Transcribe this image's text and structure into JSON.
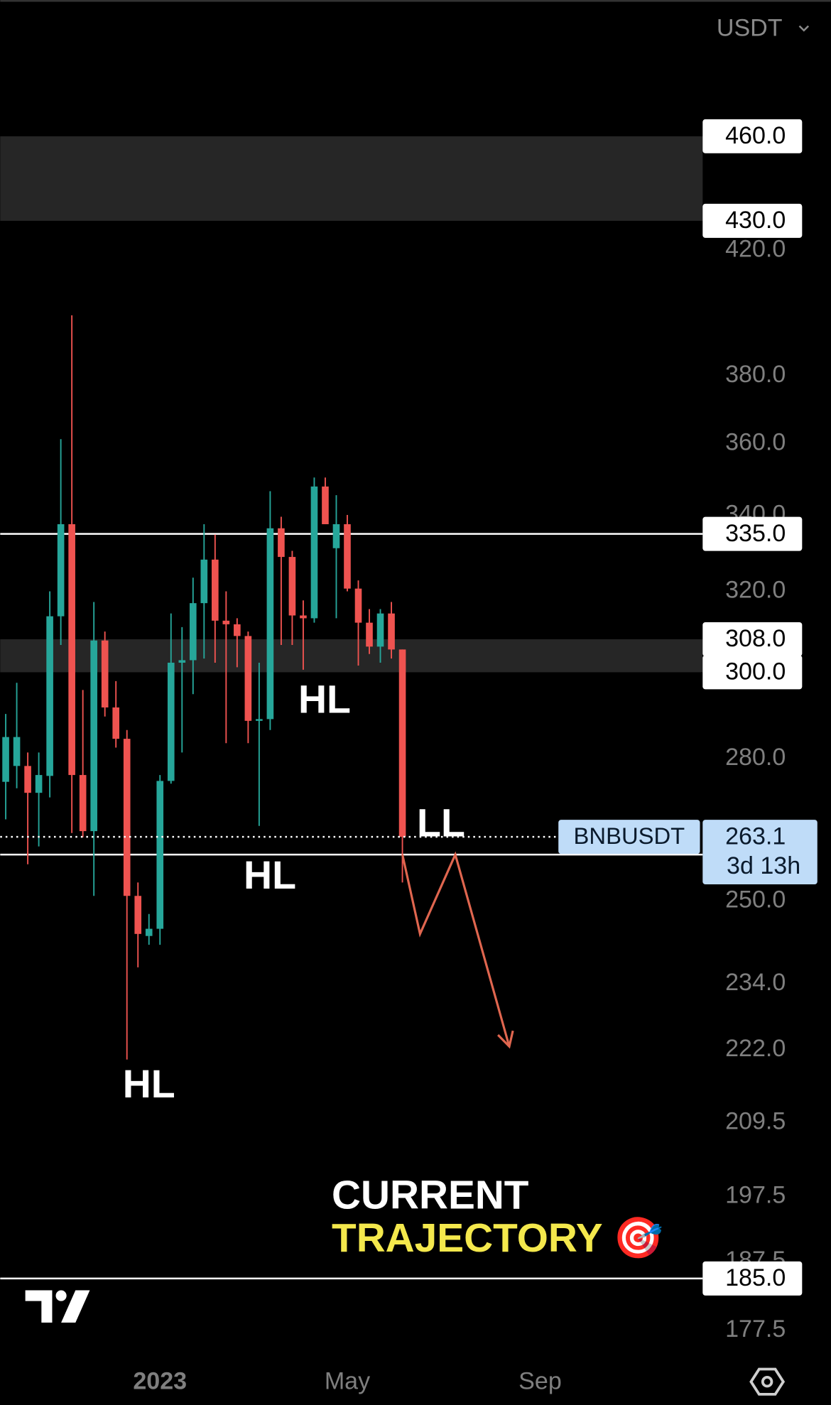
{
  "chart_data": {
    "type": "candlestick",
    "currency": "USDT",
    "log_scale": true,
    "up_color": "#26a69a",
    "down_color": "#ef5350",
    "x": [
      0,
      1,
      2,
      3,
      4,
      5,
      6,
      7,
      8,
      9,
      10,
      11,
      12,
      13,
      14,
      15,
      16,
      17,
      18,
      19,
      20,
      21,
      22,
      23,
      24,
      25,
      26,
      27,
      28,
      29,
      30,
      31,
      32,
      33,
      34,
      35,
      36
    ],
    "open": [
      274.9,
      278.4,
      278.4,
      272.5,
      276.2,
      313.7,
      337.6,
      276.4,
      264.3,
      307.7,
      291.7,
      284.5,
      251.0,
      243.1,
      244.5,
      275.1,
      302.3,
      302.9,
      317.0,
      328.2,
      312.6,
      311.7,
      308.8,
      288.6,
      289.0,
      336.5,
      328.9,
      313.9,
      313.2,
      347.9,
      331.2,
      337.6,
      320.7,
      312.1,
      306.2,
      314.4,
      305.5
    ],
    "high": [
      290.2,
      297.5,
      281.4,
      281.4,
      320.0,
      361.3,
      398.8,
      295.8,
      317.3,
      309.9,
      297.9,
      286.5,
      253.7,
      247.4,
      276.4,
      314.4,
      311.0,
      323.5,
      337.6,
      334.8,
      320.0,
      313.2,
      309.9,
      302.3,
      346.6,
      339.6,
      330.5,
      317.7,
      350.4,
      350.4,
      345.5,
      340.1,
      322.8,
      315.5,
      315.5,
      317.3,
      305.5
    ],
    "low": [
      266.8,
      273.5,
      257.4,
      261.1,
      271.5,
      306.6,
      263.9,
      263.0,
      251.0,
      289.6,
      282.5,
      220.3,
      237.1,
      241.4,
      241.4,
      274.5,
      281.4,
      294.8,
      303.3,
      302.3,
      283.5,
      301.2,
      283.5,
      265.4,
      286.5,
      306.6,
      306.6,
      300.6,
      312.1,
      337.6,
      313.2,
      320.0,
      301.6,
      304.4,
      302.3,
      303.3,
      253.7
    ],
    "close": [
      284.9,
      284.9,
      272.5,
      276.4,
      313.7,
      337.6,
      276.4,
      264.3,
      307.7,
      291.7,
      284.5,
      251.0,
      243.5,
      244.5,
      275.1,
      302.3,
      302.9,
      317.0,
      328.2,
      312.6,
      311.7,
      308.8,
      288.6,
      289.0,
      336.5,
      328.9,
      313.9,
      313.2,
      347.9,
      337.6,
      337.6,
      320.7,
      312.1,
      306.2,
      314.4,
      305.5,
      263.1
    ],
    "xlim": [
      -0.5,
      63.25
    ],
    "xticks": [
      {
        "value": 14,
        "label": "2023"
      },
      {
        "value": 31,
        "label": "May"
      },
      {
        "value": 48.5,
        "label": "Sep"
      }
    ],
    "ylim": [
      173.7,
      512.8
    ],
    "yticks": [
      {
        "value": 420,
        "label": "420.0"
      },
      {
        "value": 380,
        "label": "380.0"
      },
      {
        "value": 360,
        "label": "360.0"
      },
      {
        "value": 340,
        "label": "340.0"
      },
      {
        "value": 320,
        "label": "320.0"
      },
      {
        "value": 280,
        "label": "280.0"
      },
      {
        "value": 250,
        "label": "250.0"
      },
      {
        "value": 234,
        "label": "234.0"
      },
      {
        "value": 222,
        "label": "222.0"
      },
      {
        "value": 209.5,
        "label": "209.5"
      },
      {
        "value": 197.5,
        "label": "197.5"
      },
      {
        "value": 187.5,
        "label": "187.5"
      },
      {
        "value": 177.5,
        "label": "177.5"
      }
    ],
    "zones": [
      {
        "low": 430,
        "high": 460
      },
      {
        "low": 300,
        "high": 308
      }
    ],
    "lines": [
      335,
      259.4,
      185
    ],
    "price_labels": [
      {
        "value": 460,
        "label": "460.0"
      },
      {
        "value": 430,
        "label": "430.0"
      },
      {
        "value": 335,
        "label": "335.0"
      },
      {
        "value": 308,
        "label": "308.0"
      },
      {
        "value": 300,
        "label": "300.0"
      },
      {
        "value": 185,
        "label": "185.0"
      }
    ],
    "current_price": {
      "symbol": "BNBUSDT",
      "value": 263.1,
      "label": "263.1",
      "countdown": "3d 13h"
    },
    "projection": {
      "color": "#e0664f",
      "x": [
        36,
        37.6,
        40.8,
        45.7
      ],
      "y": [
        259.4,
        243.5,
        259.4,
        222.6
      ]
    },
    "annotations": [
      "HL",
      "HL",
      "HL",
      "LL"
    ],
    "caption": [
      "CURRENT",
      "TRAJECTORY 🎯"
    ]
  }
}
